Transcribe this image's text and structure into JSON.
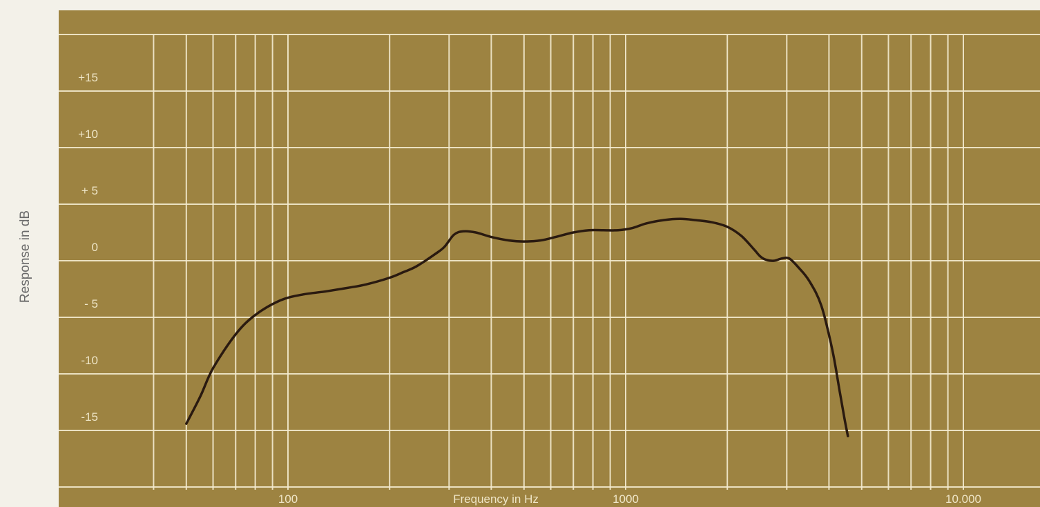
{
  "chart_data": {
    "type": "line",
    "title": "",
    "xlabel": "Frequency in Hz",
    "ylabel": "Response in dB",
    "x_scale": "log",
    "xlim": [
      40,
      16000
    ],
    "ylim": [
      -20,
      20
    ],
    "grid": true,
    "x_tick_labels": [
      {
        "value": 100,
        "label": "100"
      },
      {
        "value": 1000,
        "label": "1000"
      },
      {
        "value": 10000,
        "label": "10.000"
      }
    ],
    "y_tick_labels": [
      {
        "value": 15,
        "label": "+15"
      },
      {
        "value": 10,
        "label": "+10"
      },
      {
        "value": 5,
        "label": "+ 5"
      },
      {
        "value": 0,
        "label": "0"
      },
      {
        "value": -5,
        "label": "- 5"
      },
      {
        "value": -10,
        "label": "-10"
      },
      {
        "value": -15,
        "label": "-15"
      }
    ],
    "series": [
      {
        "color": "#2a1a10",
        "points": [
          [
            50,
            -14.4
          ],
          [
            55,
            -12
          ],
          [
            60,
            -9.5
          ],
          [
            70,
            -6.5
          ],
          [
            80,
            -4.8
          ],
          [
            95,
            -3.5
          ],
          [
            110,
            -3
          ],
          [
            130,
            -2.7
          ],
          [
            150,
            -2.4
          ],
          [
            170,
            -2.1
          ],
          [
            200,
            -1.5
          ],
          [
            220,
            -1.0
          ],
          [
            240,
            -0.5
          ],
          [
            270,
            0.5
          ],
          [
            290,
            1.2
          ],
          [
            310,
            2.3
          ],
          [
            330,
            2.6
          ],
          [
            360,
            2.5
          ],
          [
            400,
            2.1
          ],
          [
            450,
            1.8
          ],
          [
            500,
            1.7
          ],
          [
            560,
            1.8
          ],
          [
            620,
            2.1
          ],
          [
            700,
            2.5
          ],
          [
            780,
            2.7
          ],
          [
            860,
            2.7
          ],
          [
            950,
            2.7
          ],
          [
            1050,
            2.9
          ],
          [
            1150,
            3.3
          ],
          [
            1300,
            3.6
          ],
          [
            1450,
            3.7
          ],
          [
            1600,
            3.6
          ],
          [
            1800,
            3.4
          ],
          [
            2000,
            3.0
          ],
          [
            2200,
            2.2
          ],
          [
            2400,
            1.0
          ],
          [
            2500,
            0.4
          ],
          [
            2600,
            0.1
          ],
          [
            2750,
            0
          ],
          [
            2900,
            0.2
          ],
          [
            3050,
            0.2
          ],
          [
            3250,
            -0.6
          ],
          [
            3500,
            -1.8
          ],
          [
            3800,
            -4.0
          ],
          [
            4100,
            -8.0
          ],
          [
            4300,
            -11.5
          ],
          [
            4450,
            -14.0
          ],
          [
            4550,
            -15.5
          ]
        ]
      }
    ]
  }
}
